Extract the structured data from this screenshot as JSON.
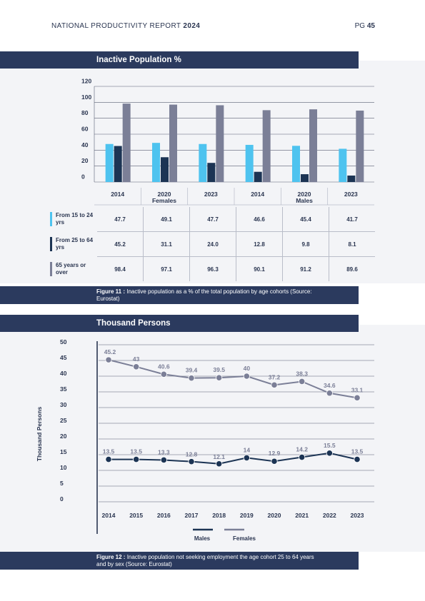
{
  "page": {
    "report_title": "NATIONAL PRODUCTIVITY REPORT",
    "report_year": "2024",
    "page_label": "PG",
    "page_number": "45"
  },
  "colors": {
    "navy_band": "#2b3a5e",
    "cohort_15_24": "#4ec3ef",
    "cohort_25_64": "#1c3454",
    "cohort_65_over": "#7b7f97",
    "males": "#1c3454",
    "females": "#7b7f97"
  },
  "figure11": {
    "band_title": "Inactive Population %",
    "caption_bold": "Figure 11 :",
    "caption": "Inactive population as a % of the total population by age cohorts (Source: Eurostat)",
    "group_labels": [
      "Females",
      "Males"
    ],
    "row_labels": [
      "From 15 to 24 yrs",
      "From 25 to 64 yrs",
      "65 years or over"
    ]
  },
  "figure12": {
    "band_title": "Thousand Persons",
    "caption_bold": "Figure 12 :",
    "caption": "Inactive population not seeking employment the age cohort 25 to 64 years and by sex (Source: Eurostat)",
    "legend": [
      "Males",
      "Females"
    ]
  },
  "chart_data": [
    {
      "type": "bar",
      "title": "Inactive Population %",
      "categories": [
        "2014",
        "2020",
        "2023",
        "2014",
        "2020",
        "2023"
      ],
      "groups": [
        {
          "name": "Females",
          "categories": [
            "2014",
            "2020",
            "2023"
          ]
        },
        {
          "name": "Males",
          "categories": [
            "2014",
            "2020",
            "2023"
          ]
        }
      ],
      "series": [
        {
          "name": "From 15 to 24 yrs",
          "values": [
            47.7,
            49.1,
            47.7,
            46.6,
            45.4,
            41.7
          ]
        },
        {
          "name": "From 25 to 64 yrs",
          "values": [
            45.2,
            31.1,
            24.0,
            12.8,
            9.8,
            8.1
          ]
        },
        {
          "name": "65 years or over",
          "values": [
            98.4,
            97.1,
            96.3,
            90.1,
            91.2,
            89.6
          ]
        }
      ],
      "value_labels": [
        [
          "47.7",
          "49.1",
          "47.7",
          "46.6",
          "45.4",
          "41.7"
        ],
        [
          "45.2",
          "31.1",
          "24.0",
          "12.8",
          "9.8",
          "8.1"
        ],
        [
          "98.4",
          "97.1",
          "96.3",
          "90.1",
          "91.2",
          "89.6"
        ]
      ],
      "yticks": [
        "0",
        "20",
        "40",
        "60",
        "80",
        "100",
        "120"
      ],
      "ylim": [
        0,
        120
      ],
      "grid": true,
      "legend": "table-below"
    },
    {
      "type": "line",
      "title": "",
      "ylabel": "Thousand Persons",
      "x": [
        "2014",
        "2015",
        "2016",
        "2017",
        "2018",
        "2019",
        "2020",
        "2021",
        "2022",
        "2023"
      ],
      "series": [
        {
          "name": "Males",
          "values": [
            13.5,
            13.5,
            13.3,
            12.8,
            12.1,
            14,
            12.9,
            14.2,
            15.5,
            13.5
          ]
        },
        {
          "name": "Females",
          "values": [
            45.2,
            43,
            40.6,
            39.4,
            39.5,
            40,
            37.2,
            38.3,
            34.6,
            33.1
          ]
        }
      ],
      "yticks": [
        "0",
        "5",
        "10",
        "15",
        "20",
        "25",
        "30",
        "35",
        "40",
        "45",
        "50"
      ],
      "ylim": [
        0,
        50
      ],
      "grid": true,
      "legend": "bottom"
    }
  ]
}
